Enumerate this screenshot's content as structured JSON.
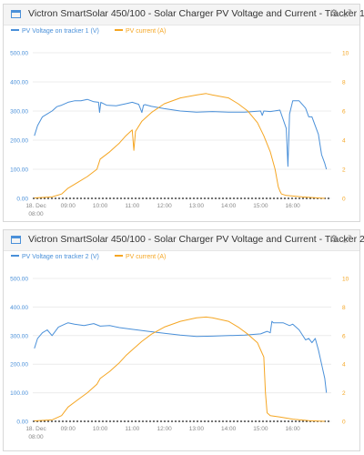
{
  "colors": {
    "voltage": "#4a90d9",
    "current": "#f5a623",
    "grid": "#ececec",
    "baseline": "#222222"
  },
  "icons": {
    "widget": "chart-widget-icon",
    "settings": "gear-icon",
    "expand": "expand-icon"
  },
  "chart_data": [
    {
      "type": "line",
      "title": "Victron SmartSolar 450/100 - Solar Charger PV Voltage and Current - Tracker 1",
      "x_ticks": [
        "18. Dec 08:00",
        "09:00",
        "10:00",
        "11:00",
        "12:00",
        "13:00",
        "14:00",
        "15:00",
        "16:00"
      ],
      "x_range": [
        7.9,
        17.2
      ],
      "y_left": {
        "ticks": [
          "500.00",
          "400.00",
          "300.00",
          "200.00",
          "100.00",
          "0.00"
        ],
        "range": [
          0,
          500
        ]
      },
      "y_right": {
        "ticks": [
          "10",
          "8",
          "6",
          "4",
          "2",
          "0"
        ],
        "range": [
          0,
          10
        ]
      },
      "grid": true,
      "legend_position": "top-left",
      "series": [
        {
          "name": "PV Voltage on tracker 1 (V)",
          "axis": "left",
          "color": "#4a90d9",
          "x": [
            7.95,
            8.05,
            8.2,
            8.35,
            8.5,
            8.65,
            8.8,
            9.0,
            9.2,
            9.4,
            9.6,
            9.8,
            9.95,
            9.98,
            10.02,
            10.2,
            10.5,
            10.8,
            11.0,
            11.2,
            11.3,
            11.35,
            11.4,
            11.6,
            12.0,
            12.5,
            13.0,
            13.5,
            14.0,
            14.5,
            15.0,
            15.05,
            15.1,
            15.3,
            15.6,
            15.8,
            15.85,
            15.9,
            16.0,
            16.2,
            16.4,
            16.5,
            16.6,
            16.8,
            16.9,
            17.0,
            17.05
          ],
          "y": [
            215,
            250,
            280,
            290,
            300,
            315,
            320,
            330,
            335,
            335,
            340,
            332,
            330,
            295,
            330,
            320,
            318,
            325,
            330,
            323,
            295,
            320,
            322,
            316,
            308,
            300,
            296,
            298,
            296,
            296,
            300,
            285,
            300,
            298,
            303,
            240,
            110,
            290,
            335,
            335,
            310,
            280,
            280,
            220,
            150,
            120,
            100
          ]
        },
        {
          "name": "PV current (A)",
          "axis": "right",
          "color": "#f5a623",
          "x": [
            7.95,
            8.5,
            8.8,
            9.0,
            9.3,
            9.6,
            9.9,
            10.0,
            10.3,
            10.6,
            10.8,
            11.0,
            11.05,
            11.1,
            11.3,
            11.6,
            12.0,
            12.5,
            13.0,
            13.3,
            13.5,
            14.0,
            14.3,
            14.6,
            14.9,
            15.1,
            15.3,
            15.45,
            15.55,
            15.6,
            15.65,
            15.8,
            16.3,
            17.0
          ],
          "y": [
            0.03,
            0.1,
            0.3,
            0.7,
            1.1,
            1.5,
            2.0,
            2.7,
            3.2,
            3.8,
            4.3,
            4.7,
            3.3,
            4.6,
            5.3,
            5.9,
            6.5,
            6.9,
            7.1,
            7.2,
            7.1,
            6.9,
            6.5,
            6.0,
            5.2,
            4.3,
            3.2,
            2.0,
            0.8,
            0.5,
            0.3,
            0.2,
            0.1,
            0.0
          ]
        }
      ]
    },
    {
      "type": "line",
      "title": "Victron SmartSolar 450/100 - Solar Charger PV Voltage and Current - Tracker 2",
      "x_ticks": [
        "18. Dec 08:00",
        "09:00",
        "10:00",
        "11:00",
        "12:00",
        "13:00",
        "14:00",
        "15:00",
        "16:00"
      ],
      "x_range": [
        7.9,
        17.2
      ],
      "y_left": {
        "ticks": [
          "500.00",
          "400.00",
          "300.00",
          "200.00",
          "100.00",
          "0.00"
        ],
        "range": [
          0,
          500
        ]
      },
      "y_right": {
        "ticks": [
          "10",
          "8",
          "6",
          "4",
          "2",
          "0"
        ],
        "range": [
          0,
          10
        ]
      },
      "grid": true,
      "legend_position": "top-left",
      "series": [
        {
          "name": "PV Voltage on tracker 2 (V)",
          "axis": "left",
          "color": "#4a90d9",
          "x": [
            7.95,
            8.05,
            8.2,
            8.35,
            8.5,
            8.7,
            8.9,
            9.0,
            9.2,
            9.5,
            9.8,
            10.0,
            10.3,
            10.6,
            11.0,
            11.5,
            12.0,
            12.5,
            13.0,
            13.5,
            14.0,
            14.5,
            15.0,
            15.2,
            15.3,
            15.35,
            15.4,
            15.5,
            15.7,
            15.9,
            16.0,
            16.2,
            16.4,
            16.5,
            16.6,
            16.7,
            16.8,
            16.9,
            17.0,
            17.05
          ],
          "y": [
            255,
            290,
            310,
            320,
            300,
            330,
            340,
            345,
            340,
            335,
            342,
            333,
            335,
            328,
            322,
            315,
            308,
            302,
            297,
            298,
            300,
            302,
            306,
            315,
            310,
            350,
            345,
            345,
            345,
            335,
            340,
            320,
            285,
            290,
            275,
            290,
            250,
            200,
            150,
            100
          ]
        },
        {
          "name": "PV current (A)",
          "axis": "right",
          "color": "#f5a623",
          "x": [
            7.95,
            8.5,
            8.8,
            9.0,
            9.3,
            9.6,
            9.9,
            10.0,
            10.3,
            10.6,
            10.8,
            11.0,
            11.3,
            11.6,
            12.0,
            12.5,
            13.0,
            13.3,
            13.5,
            14.0,
            14.3,
            14.6,
            14.9,
            15.0,
            15.1,
            15.15,
            15.2,
            15.3,
            15.6,
            16.0,
            16.5,
            17.0
          ],
          "y": [
            0.03,
            0.1,
            0.4,
            1.0,
            1.5,
            2.0,
            2.6,
            3.0,
            3.5,
            4.1,
            4.6,
            5.0,
            5.6,
            6.1,
            6.6,
            7.0,
            7.25,
            7.3,
            7.25,
            7.0,
            6.6,
            6.1,
            5.5,
            5.0,
            4.5,
            2.0,
            0.6,
            0.4,
            0.3,
            0.15,
            0.05,
            0.0
          ]
        }
      ]
    }
  ]
}
